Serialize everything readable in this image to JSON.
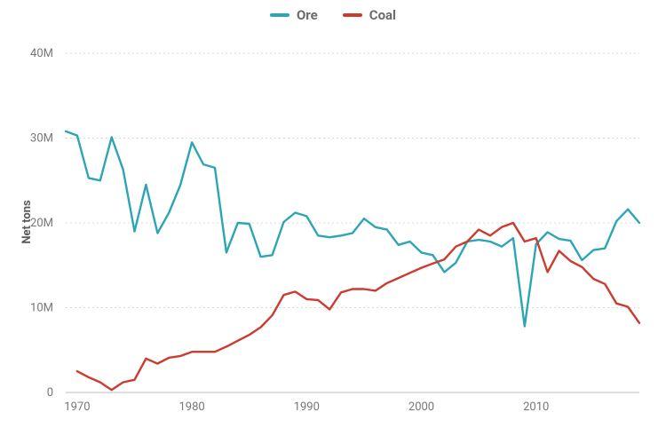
{
  "chart": {
    "type": "line",
    "background_color": "#ffffff",
    "grid_color": "#d9d9d9",
    "axis_text_color": "#777777",
    "legend_text_color": "#6b6b6b",
    "line_width": 2.4,
    "y_axis": {
      "label": "Net tons",
      "label_fontsize": 13,
      "min": 0,
      "max": 40000000,
      "ticks": [
        0,
        10000000,
        20000000,
        30000000,
        40000000
      ],
      "tick_labels": [
        "0",
        "10M",
        "20M",
        "30M",
        "40M"
      ]
    },
    "x_axis": {
      "min": 1969,
      "max": 2019,
      "ticks": [
        1970,
        1980,
        1990,
        2000,
        2010
      ],
      "tick_labels": [
        "1970",
        "1980",
        "1990",
        "2000",
        "2010"
      ]
    },
    "legend": {
      "items": [
        {
          "label": "Ore",
          "color": "#2ca6b5"
        },
        {
          "label": "Coal",
          "color": "#cc3b2f"
        }
      ]
    },
    "series": [
      {
        "name": "Ore",
        "color": "#2ca6b5",
        "x": [
          1969,
          1970,
          1971,
          1972,
          1973,
          1974,
          1975,
          1976,
          1977,
          1978,
          1979,
          1980,
          1981,
          1982,
          1983,
          1984,
          1985,
          1986,
          1987,
          1988,
          1989,
          1990,
          1991,
          1992,
          1993,
          1994,
          1995,
          1996,
          1997,
          1998,
          1999,
          2000,
          2001,
          2002,
          2003,
          2004,
          2005,
          2006,
          2007,
          2008,
          2009,
          2010,
          2011,
          2012,
          2013,
          2014,
          2015,
          2016,
          2017,
          2018,
          2019
        ],
        "y": [
          30800000,
          30300000,
          25300000,
          25000000,
          30100000,
          26300000,
          19000000,
          24500000,
          18800000,
          21200000,
          24500000,
          29500000,
          26900000,
          26500000,
          16500000,
          20000000,
          19900000,
          16000000,
          16200000,
          20100000,
          21200000,
          20800000,
          18500000,
          18300000,
          18500000,
          18800000,
          20500000,
          19500000,
          19200000,
          17400000,
          17800000,
          16500000,
          16200000,
          14200000,
          15300000,
          17800000,
          18000000,
          17800000,
          17200000,
          18200000,
          7800000,
          17500000,
          18900000,
          18100000,
          17900000,
          15600000,
          16800000,
          17000000,
          20200000,
          21600000,
          20000000
        ]
      },
      {
        "name": "Coal",
        "color": "#cc3b2f",
        "x": [
          1970,
          1971,
          1972,
          1973,
          1974,
          1975,
          1976,
          1977,
          1978,
          1979,
          1980,
          1981,
          1982,
          1983,
          1984,
          1985,
          1986,
          1987,
          1988,
          1989,
          1990,
          1991,
          1992,
          1993,
          1994,
          1995,
          1996,
          1997,
          1998,
          1999,
          2000,
          2001,
          2002,
          2003,
          2004,
          2005,
          2006,
          2007,
          2008,
          2009,
          2010,
          2011,
          2012,
          2013,
          2014,
          2015,
          2016,
          2017,
          2018,
          2019
        ],
        "y": [
          2500000,
          1800000,
          1200000,
          300000,
          1200000,
          1500000,
          4000000,
          3400000,
          4100000,
          4300000,
          4800000,
          4800000,
          4800000,
          5400000,
          6100000,
          6800000,
          7700000,
          9100000,
          11500000,
          11900000,
          11000000,
          10900000,
          9800000,
          11800000,
          12200000,
          12200000,
          12000000,
          12900000,
          13500000,
          14100000,
          14700000,
          15200000,
          15700000,
          17200000,
          17800000,
          19200000,
          18500000,
          19500000,
          20000000,
          17800000,
          18200000,
          14200000,
          16700000,
          15500000,
          14800000,
          13400000,
          12800000,
          10500000,
          10100000,
          8200000
        ]
      }
    ]
  }
}
